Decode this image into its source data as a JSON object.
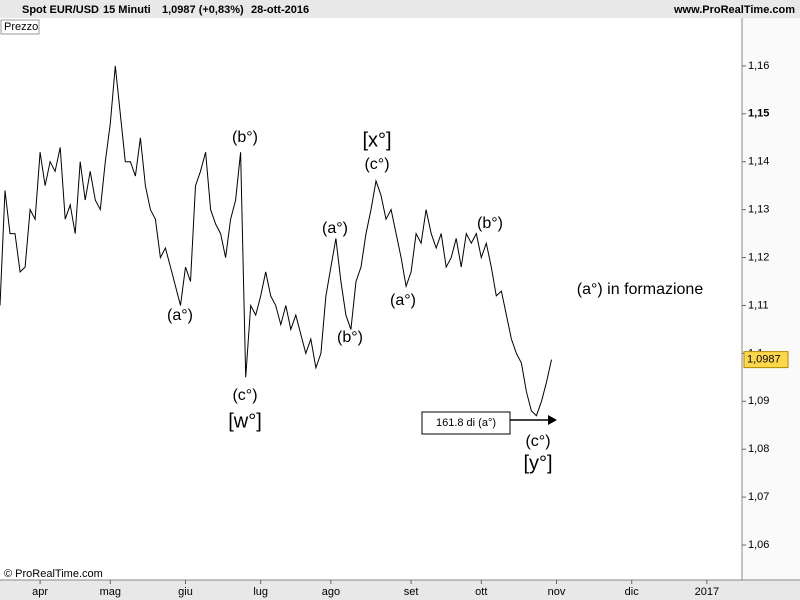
{
  "chart_data": {
    "type": "line",
    "header": {
      "symbol": "Spot EUR/USD",
      "interval": "15 Minuti",
      "quote": "1,0987 (+0,83%)",
      "date": "28-ott-2016",
      "site": "www.ProRealTime.com"
    },
    "panel_label": "Prezzo",
    "copyright": "© ProRealTime.com",
    "price_tag": "1,0987",
    "categories": [
      null,
      null,
      null,
      null,
      null,
      null,
      null,
      null,
      "apr",
      null,
      null,
      null,
      null,
      null,
      null,
      null,
      null,
      null,
      null,
      null,
      null,
      null,
      "mag",
      null,
      null,
      null,
      null,
      null,
      null,
      null,
      null,
      null,
      null,
      null,
      null,
      null,
      null,
      "giu",
      null,
      null,
      null,
      null,
      null,
      null,
      null,
      null,
      null,
      null,
      null,
      null,
      null,
      null,
      "lug",
      null,
      null,
      null,
      null,
      null,
      null,
      null,
      null,
      null,
      null,
      null,
      null,
      null,
      "ago",
      null,
      null,
      null,
      null,
      null,
      null,
      null,
      null,
      null,
      null,
      null,
      null,
      null,
      null,
      null,
      "set",
      null,
      null,
      null,
      null,
      null,
      null,
      null,
      null,
      null,
      null,
      null,
      null,
      null,
      "ott",
      null,
      null,
      null,
      null,
      null,
      null,
      null,
      null,
      null,
      null,
      null,
      null,
      null,
      null,
      "nov",
      null,
      null,
      null,
      null,
      null,
      null,
      null,
      null,
      null,
      null,
      null,
      null,
      null,
      null,
      "dic",
      null,
      null,
      null,
      null,
      null,
      null,
      null,
      null,
      null,
      null,
      null,
      null,
      null,
      null,
      "2017",
      null,
      null,
      null,
      null,
      null,
      null
    ],
    "series": [
      {
        "color": "#000000",
        "values": [
          1.11,
          1.134,
          1.125,
          1.125,
          1.117,
          1.118,
          1.13,
          1.128,
          1.142,
          1.135,
          1.14,
          1.138,
          1.143,
          1.128,
          1.131,
          1.125,
          1.14,
          1.132,
          1.138,
          1.132,
          1.13,
          1.14,
          1.148,
          1.16,
          1.15,
          1.14,
          1.14,
          1.137,
          1.145,
          1.135,
          1.13,
          1.128,
          1.12,
          1.122,
          1.118,
          1.114,
          1.11,
          1.118,
          1.115,
          1.135,
          1.138,
          1.142,
          1.13,
          1.127,
          1.125,
          1.12,
          1.128,
          1.132,
          1.142,
          1.095,
          1.11,
          1.108,
          1.112,
          1.117,
          1.112,
          1.11,
          1.106,
          1.11,
          1.105,
          1.108,
          1.104,
          1.1,
          1.103,
          1.097,
          1.1,
          1.112,
          1.118,
          1.124,
          1.115,
          1.108,
          1.105,
          1.115,
          1.118,
          1.125,
          1.13,
          1.136,
          1.133,
          1.128,
          1.13,
          1.125,
          1.12,
          1.114,
          1.117,
          1.125,
          1.123,
          1.13,
          1.125,
          1.122,
          1.125,
          1.118,
          1.12,
          1.124,
          1.118,
          1.125,
          1.123,
          1.125,
          1.12,
          1.123,
          1.118,
          1.112,
          1.113,
          1.108,
          1.103,
          1.1,
          1.098,
          1.092,
          1.088,
          1.087,
          1.09,
          1.094,
          1.0987,
          null,
          null,
          null,
          null,
          null,
          null,
          null,
          null,
          null,
          null,
          null,
          null,
          null,
          null,
          null,
          null,
          null,
          null,
          null,
          null,
          null,
          null,
          null,
          null,
          null,
          null,
          null,
          null,
          null,
          null,
          null,
          null,
          null,
          null,
          null,
          null,
          null
        ]
      }
    ],
    "ylim": [
      1.0527,
      1.17
    ],
    "yticks": [
      {
        "value": 1.06,
        "label": "1,06"
      },
      {
        "value": 1.07,
        "label": "1,07"
      },
      {
        "value": 1.08,
        "label": "1,08"
      },
      {
        "value": 1.09,
        "label": "1,09"
      },
      {
        "value": 1.1,
        "label": "1,1"
      },
      {
        "value": 1.11,
        "label": "1,11"
      },
      {
        "value": 1.12,
        "label": "1,12"
      },
      {
        "value": 1.13,
        "label": "1,13"
      },
      {
        "value": 1.14,
        "label": "1,14"
      },
      {
        "value": 1.15,
        "label": "1,15"
      },
      {
        "value": 1.16,
        "label": "1,16"
      }
    ],
    "annotations": [
      "(b°)",
      "(a°)",
      "(c°)",
      "[w°]",
      "[x°]",
      "(c°)",
      "(a°)",
      "(b°)",
      "(a°)",
      "(b°)",
      "(c°)",
      "[y°]",
      "(a°) in formazione",
      "161.8 di (a°)"
    ]
  }
}
